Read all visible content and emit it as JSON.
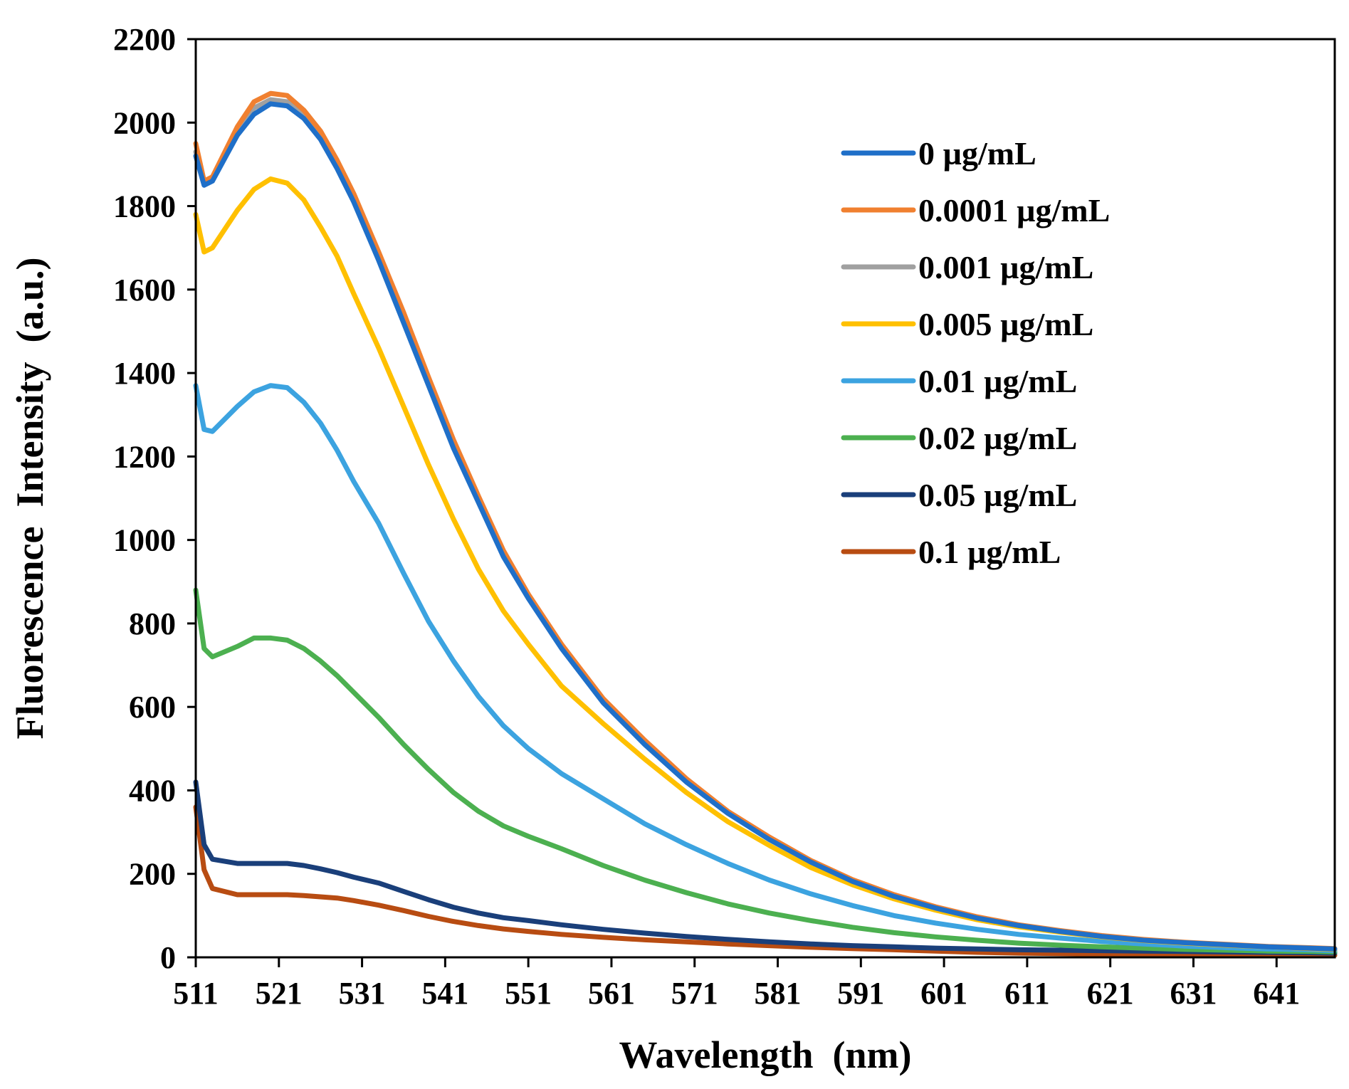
{
  "chart_data": {
    "type": "line",
    "title": "",
    "xlabel": "Wavelength  (nm)",
    "ylabel": "Fluorescence  Intensity  (a.u.)",
    "xlim": [
      511,
      648
    ],
    "ylim": [
      0,
      2200
    ],
    "x_ticks": [
      511,
      521,
      531,
      541,
      551,
      561,
      571,
      581,
      591,
      601,
      611,
      621,
      631,
      641
    ],
    "y_ticks": [
      0,
      200,
      400,
      600,
      800,
      1000,
      1200,
      1400,
      1600,
      1800,
      2000,
      2200
    ],
    "grid": false,
    "legend_position": "top-right",
    "x": [
      511,
      512,
      513,
      516,
      518,
      520,
      522,
      524,
      526,
      528,
      530,
      533,
      536,
      539,
      542,
      545,
      548,
      551,
      555,
      560,
      565,
      570,
      575,
      580,
      585,
      590,
      595,
      600,
      605,
      610,
      615,
      620,
      625,
      630,
      635,
      640,
      645,
      648
    ],
    "series": [
      {
        "name": "0 µg/mL",
        "color": "#1f6fc8",
        "values": [
          1920,
          1850,
          1860,
          1970,
          2020,
          2045,
          2040,
          2010,
          1960,
          1890,
          1810,
          1670,
          1520,
          1370,
          1220,
          1090,
          960,
          860,
          740,
          610,
          510,
          420,
          345,
          282,
          228,
          182,
          146,
          118,
          94,
          76,
          62,
          50,
          41,
          35,
          30,
          25,
          22,
          20
        ]
      },
      {
        "name": "0.0001 µg/mL",
        "color": "#f08030",
        "values": [
          1950,
          1860,
          1870,
          1990,
          2050,
          2070,
          2065,
          2030,
          1980,
          1910,
          1830,
          1690,
          1545,
          1390,
          1240,
          1105,
          975,
          870,
          750,
          620,
          520,
          428,
          350,
          288,
          232,
          186,
          150,
          121,
          97,
          78,
          64,
          52,
          43,
          36,
          31,
          26,
          23,
          21
        ]
      },
      {
        "name": "0.001 µg/mL",
        "color": "#a0a0a0",
        "values": [
          1930,
          1855,
          1865,
          1980,
          2035,
          2055,
          2050,
          2020,
          1970,
          1900,
          1820,
          1680,
          1530,
          1380,
          1230,
          1095,
          965,
          865,
          745,
          615,
          515,
          424,
          347,
          285,
          230,
          184,
          148,
          120,
          95,
          77,
          63,
          51,
          42,
          35,
          30,
          25,
          22,
          20
        ]
      },
      {
        "name": "0.005 µg/mL",
        "color": "#ffc000",
        "values": [
          1780,
          1690,
          1700,
          1790,
          1840,
          1865,
          1855,
          1815,
          1750,
          1680,
          1590,
          1460,
          1320,
          1180,
          1050,
          930,
          830,
          750,
          650,
          560,
          475,
          395,
          325,
          268,
          215,
          174,
          140,
          113,
          90,
          73,
          60,
          49,
          40,
          34,
          29,
          25,
          21,
          19
        ]
      },
      {
        "name": "0.01 µg/mL",
        "color": "#3ca3e0",
        "values": [
          1370,
          1265,
          1260,
          1320,
          1355,
          1370,
          1365,
          1330,
          1280,
          1215,
          1140,
          1040,
          920,
          805,
          710,
          625,
          555,
          500,
          440,
          380,
          320,
          270,
          225,
          185,
          152,
          124,
          100,
          82,
          67,
          55,
          46,
          38,
          32,
          27,
          23,
          20,
          18,
          16
        ]
      },
      {
        "name": "0.02 µg/mL",
        "color": "#4cb050",
        "values": [
          880,
          740,
          720,
          745,
          765,
          765,
          760,
          740,
          710,
          675,
          635,
          575,
          510,
          450,
          395,
          350,
          315,
          290,
          260,
          220,
          185,
          155,
          128,
          106,
          88,
          72,
          59,
          49,
          41,
          34,
          29,
          25,
          22,
          19,
          17,
          15,
          14,
          13
        ]
      },
      {
        "name": "0.05 µg/mL",
        "color": "#1a3f7a",
        "values": [
          420,
          270,
          235,
          225,
          225,
          225,
          225,
          220,
          212,
          203,
          192,
          178,
          158,
          138,
          120,
          106,
          95,
          88,
          78,
          67,
          58,
          50,
          43,
          37,
          32,
          28,
          25,
          22,
          20,
          18,
          17,
          16,
          15,
          14,
          13,
          12,
          11,
          10
        ]
      },
      {
        "name": "0.1 µg/mL",
        "color": "#b84c12",
        "values": [
          360,
          210,
          165,
          150,
          150,
          150,
          150,
          148,
          145,
          142,
          136,
          125,
          112,
          98,
          86,
          76,
          68,
          62,
          55,
          48,
          42,
          37,
          32,
          28,
          24,
          21,
          18,
          15,
          12,
          10,
          9,
          8,
          7,
          6,
          6,
          5,
          5,
          5
        ]
      }
    ]
  }
}
